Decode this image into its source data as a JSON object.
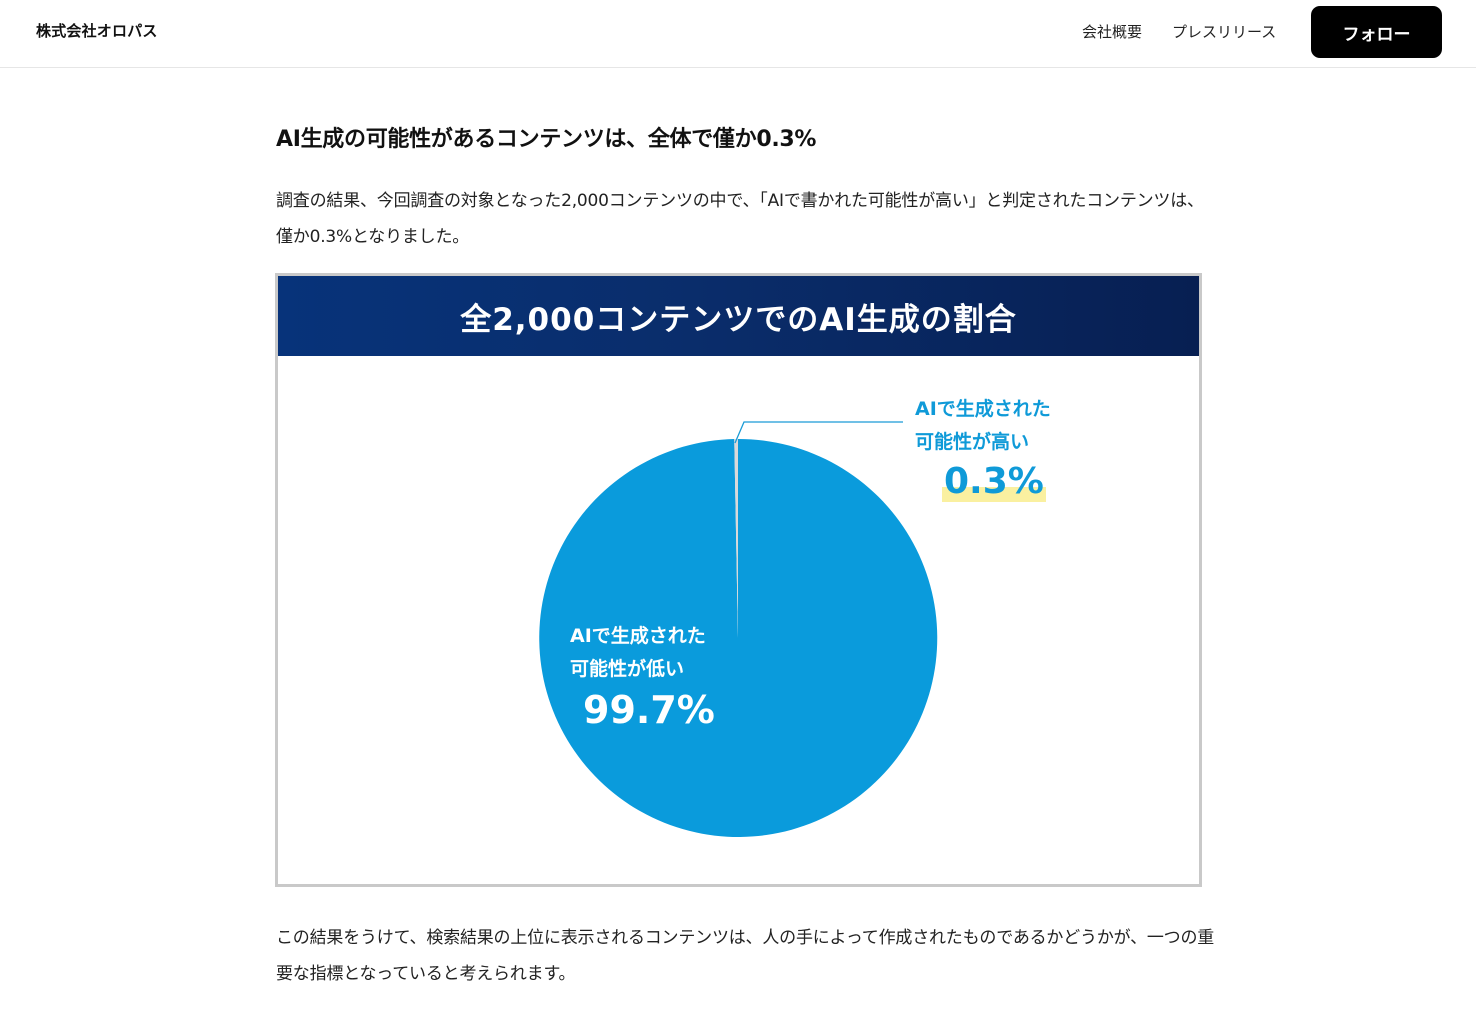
{
  "header": {
    "brand": "株式会社オロパス",
    "nav": [
      {
        "label": "会社概要"
      },
      {
        "label": "プレスリリース"
      }
    ],
    "follow_label": "フォロー"
  },
  "article": {
    "heading": "AI生成の可能性があるコンテンツは、全体で僅か0.3%",
    "paragraph1": "調査の結果、今回調査の対象となった2,000コンテンツの中で、「AIで書かれた可能性が高い」と判定されたコンテンツは、僅か0.3%となりました。",
    "paragraph2": "この結果をうけて、検索結果の上位に表示されるコンテンツは、人の手によって作成されたものであるかどうかが、一つの重要な指標となっていると考えられます。"
  },
  "chart": {
    "header_bg": "#0a2d6b",
    "labels": {
      "high_line1": "AIで生成された",
      "high_line2": "可能性が高い",
      "high_pct": "0.3%",
      "low_line1": "AIで生成された",
      "low_line2": "可能性が低い",
      "low_pct": "99.7%"
    }
  },
  "chart_data": {
    "type": "pie",
    "title": "全2,000コンテンツでのAI生成の割合",
    "categories": [
      "AIで生成された可能性が高い",
      "AIで生成された可能性が低い"
    ],
    "values": [
      0.3,
      99.7
    ],
    "unit": "%",
    "colors": [
      "#d9d9d9",
      "#0a9bdc"
    ],
    "highlight_color": "#faf0a0",
    "total_items": 2000,
    "legend": "none (direct labels)",
    "start_angle": "12 o'clock, clockwise"
  }
}
